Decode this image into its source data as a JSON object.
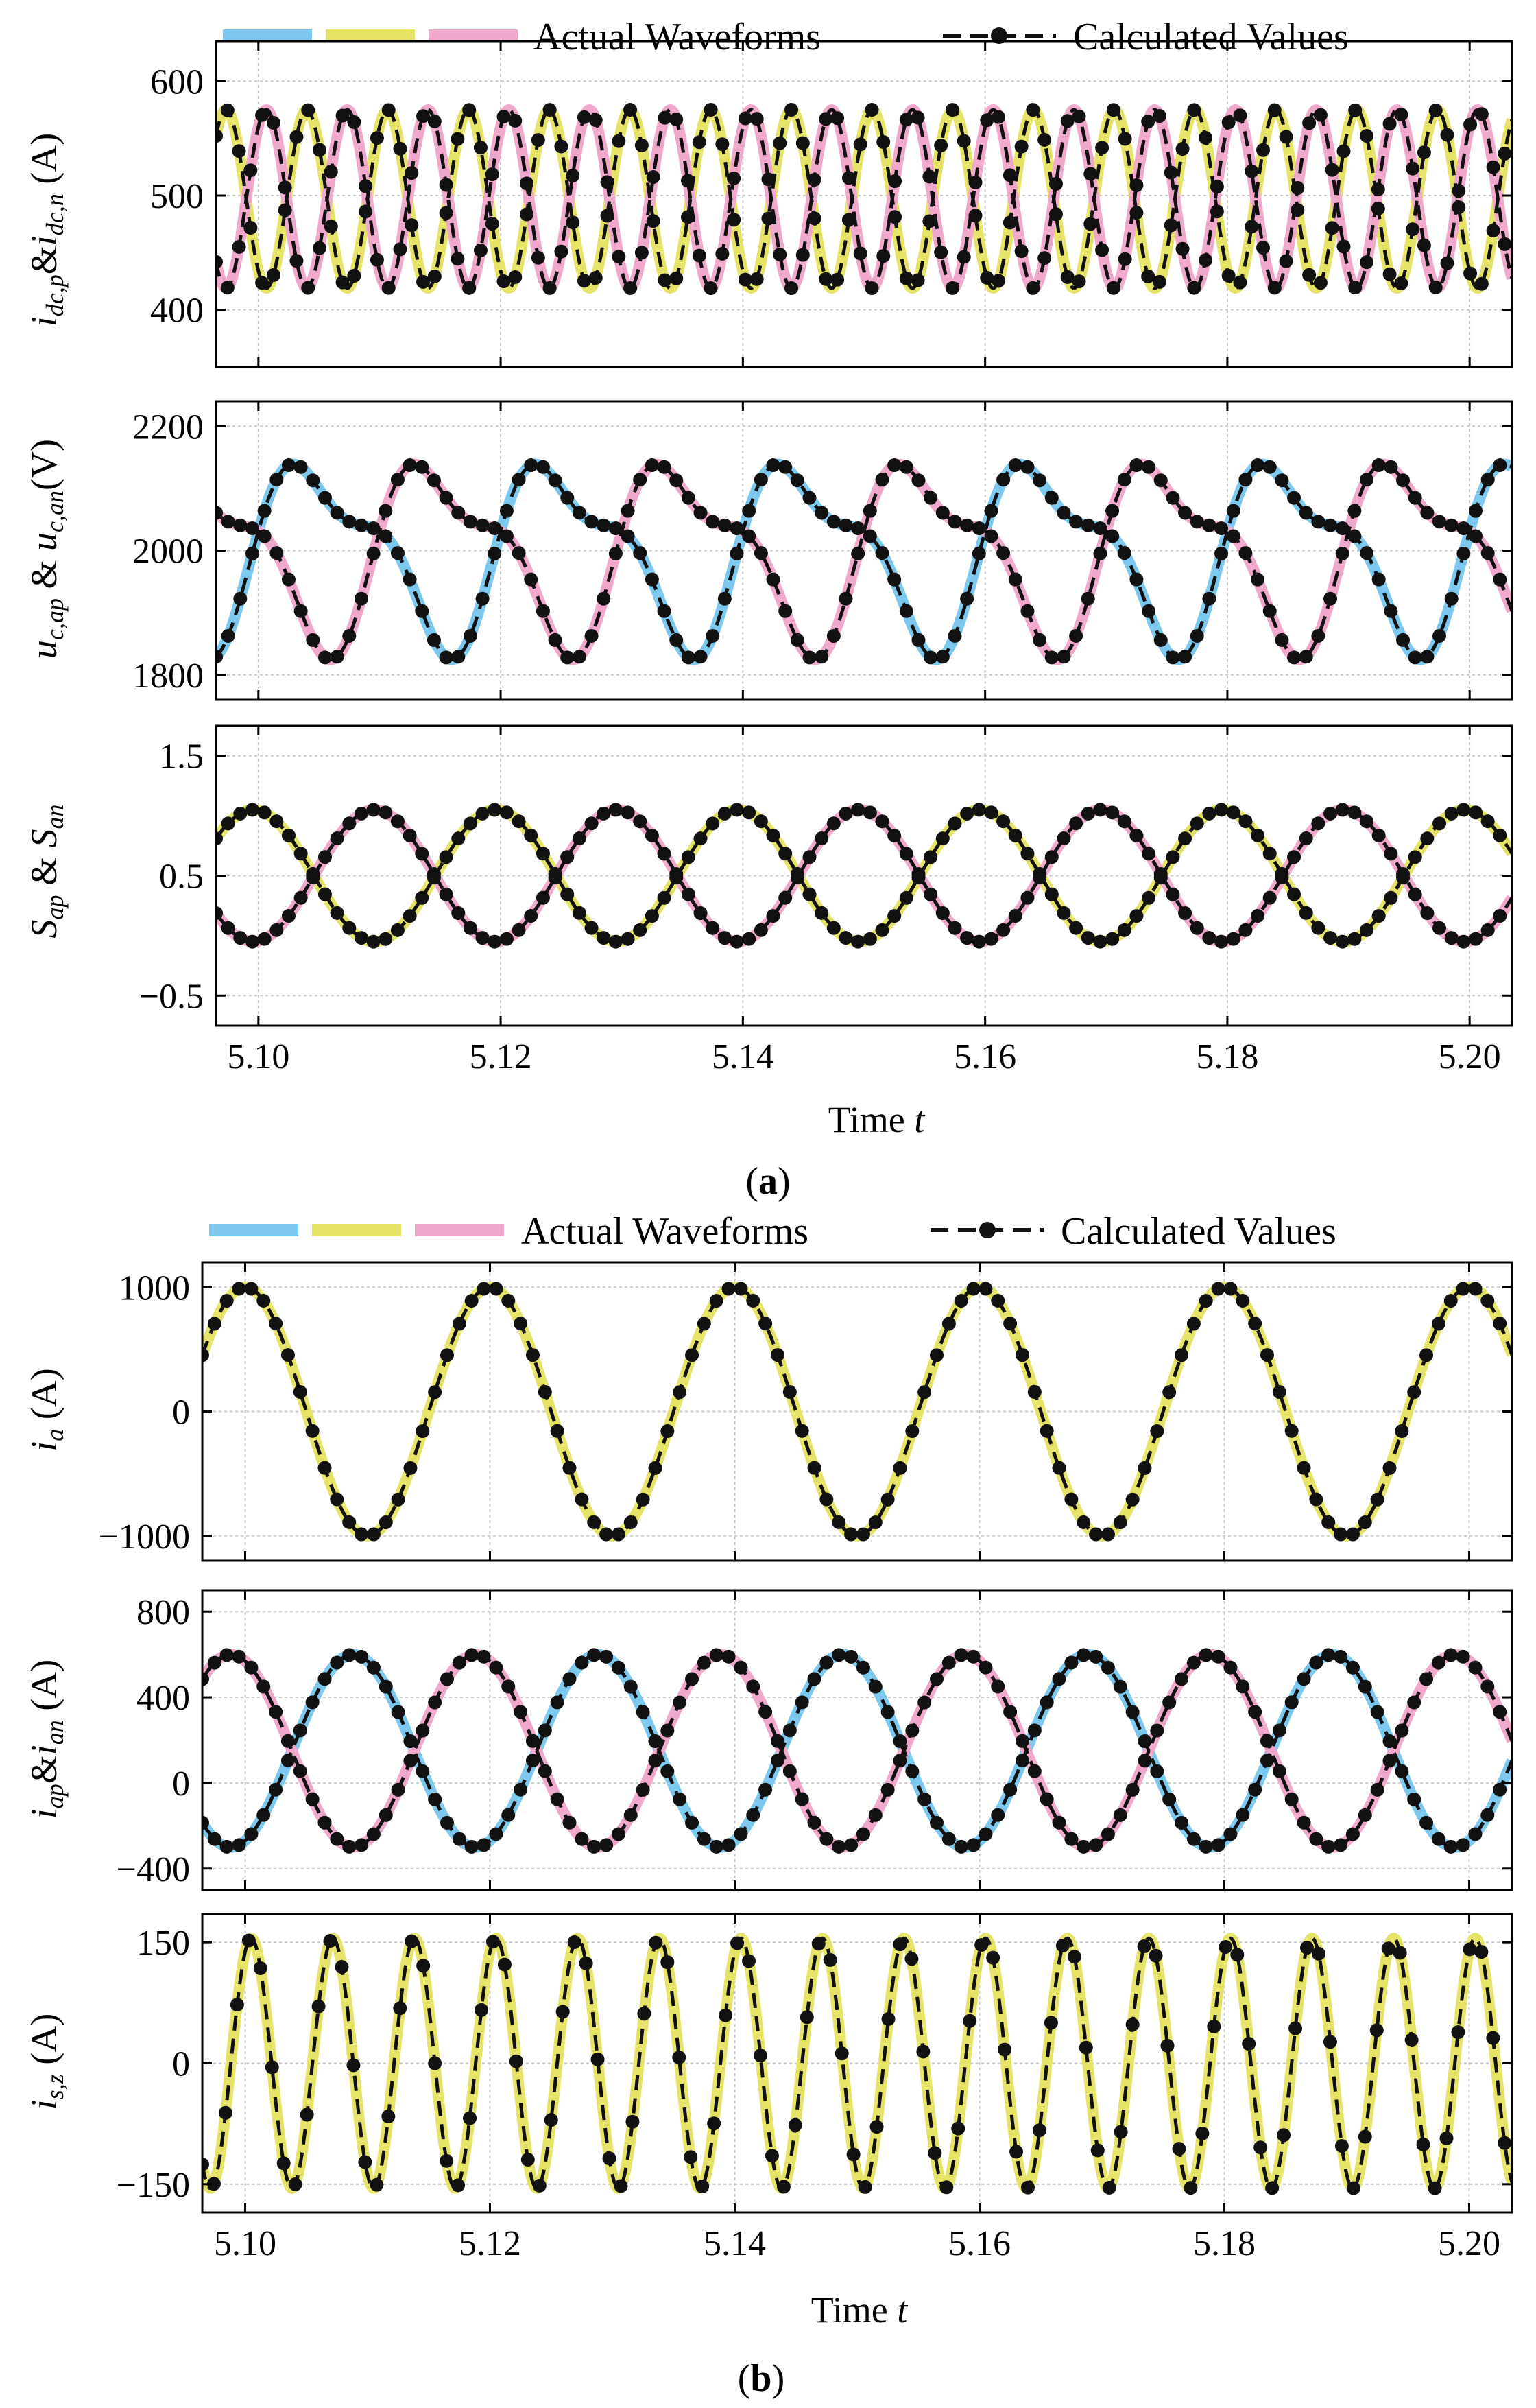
{
  "figure": {
    "legend_actual": "Actual Waveforms",
    "legend_calc": "Calculated Values",
    "subfig_a": "(a)",
    "subfig_b": "(b)",
    "xlabel": "Time t",
    "colors": {
      "blue": "#7cc8ee",
      "yellow": "#e6e468",
      "pink": "#f0a8cc",
      "calc": "#111111",
      "grid": "#c8c8c8"
    }
  },
  "chart_data": [
    {
      "type": "line",
      "panel": "a1",
      "ylabel": "i_{dc,p} & i_{dc,n} (A)",
      "xlim": [
        5.0965,
        5.2035
      ],
      "ylim": [
        350,
        635
      ],
      "yticks": [
        400,
        500,
        600
      ],
      "xticks": [
        5.1,
        5.12,
        5.14,
        5.16,
        5.18,
        5.2
      ],
      "show_xticklabels": false,
      "series": [
        {
          "color": "yellow",
          "func": "sin",
          "offset": 497,
          "amp": 78,
          "freq": 150,
          "phase": -2.2
        },
        {
          "color": "pink",
          "func": "sin",
          "offset": 497,
          "amp": 78,
          "freq": 150,
          "phase": 0.94
        }
      ],
      "calc_markers": true
    },
    {
      "type": "line",
      "panel": "a2",
      "ylabel": "u_{c,ap} & u_{c,an} (V)",
      "xlim": [
        5.0965,
        5.2035
      ],
      "ylim": [
        1760,
        2240
      ],
      "yticks": [
        1800,
        2000,
        2200
      ],
      "xticks": [
        5.1,
        5.12,
        5.14,
        5.16,
        5.18,
        5.2
      ],
      "show_xticklabels": false,
      "series": [
        {
          "color": "blue",
          "func": "cap",
          "offset": 2000,
          "amp1": 130,
          "amp2": 55,
          "freq": 50,
          "phase": 0.0
        },
        {
          "color": "pink",
          "func": "cap",
          "offset": 2000,
          "amp1": 130,
          "amp2": 55,
          "freq": 50,
          "phase": 3.14159
        }
      ],
      "calc_markers": true
    },
    {
      "type": "line",
      "panel": "a3",
      "ylabel": "S_{ap} & S_{an}",
      "xlim": [
        5.0965,
        5.2035
      ],
      "ylim": [
        -0.75,
        1.75
      ],
      "yticks": [
        -0.5,
        0.5,
        1.5
      ],
      "xticks": [
        5.1,
        5.12,
        5.14,
        5.16,
        5.18,
        5.2
      ],
      "show_xticklabels": true,
      "series": [
        {
          "color": "yellow",
          "func": "sin",
          "offset": 0.5,
          "amp": 0.55,
          "freq": 50,
          "phase": 1.7
        },
        {
          "color": "pink",
          "func": "sin",
          "offset": 0.5,
          "amp": 0.55,
          "freq": 50,
          "phase": -1.44
        }
      ],
      "calc_markers": true
    },
    {
      "type": "line",
      "panel": "b1",
      "ylabel": "i_a (A)",
      "xlim": [
        5.0965,
        5.2035
      ],
      "ylim": [
        -1200,
        1200
      ],
      "yticks": [
        -1000,
        0,
        1000
      ],
      "xticks": [
        5.1,
        5.12,
        5.14,
        5.16,
        5.18,
        5.2
      ],
      "show_xticklabels": false,
      "series": [
        {
          "color": "yellow",
          "func": "sin",
          "offset": 0,
          "amp": 1000,
          "freq": 50,
          "phase": 1.57
        }
      ],
      "calc_markers": true
    },
    {
      "type": "line",
      "panel": "b2",
      "ylabel": "i_{ap} & i_{an} (A)",
      "xlim": [
        5.0965,
        5.2035
      ],
      "ylim": [
        -500,
        900
      ],
      "yticks": [
        -400,
        0,
        400,
        800
      ],
      "xticks": [
        5.1,
        5.12,
        5.14,
        5.16,
        5.18,
        5.2
      ],
      "show_xticklabels": false,
      "series": [
        {
          "color": "blue",
          "func": "sin",
          "offset": 150,
          "amp": 450,
          "freq": 50,
          "phase": -1.2
        },
        {
          "color": "pink",
          "func": "sin",
          "offset": 150,
          "amp": 450,
          "freq": 50,
          "phase": 1.94
        }
      ],
      "calc_markers": true
    },
    {
      "type": "line",
      "panel": "b3",
      "ylabel": "i_{s,z} (A)",
      "xlim": [
        5.0965,
        5.2035
      ],
      "ylim": [
        -185,
        185
      ],
      "yticks": [
        -150,
        0,
        150
      ],
      "xticks": [
        5.1,
        5.12,
        5.14,
        5.16,
        5.18,
        5.2
      ],
      "show_xticklabels": true,
      "series": [
        {
          "color": "yellow",
          "func": "sin",
          "offset": 0,
          "amp": 155,
          "freq": 150,
          "phase": 1.1
        }
      ],
      "calc_markers": true
    }
  ]
}
